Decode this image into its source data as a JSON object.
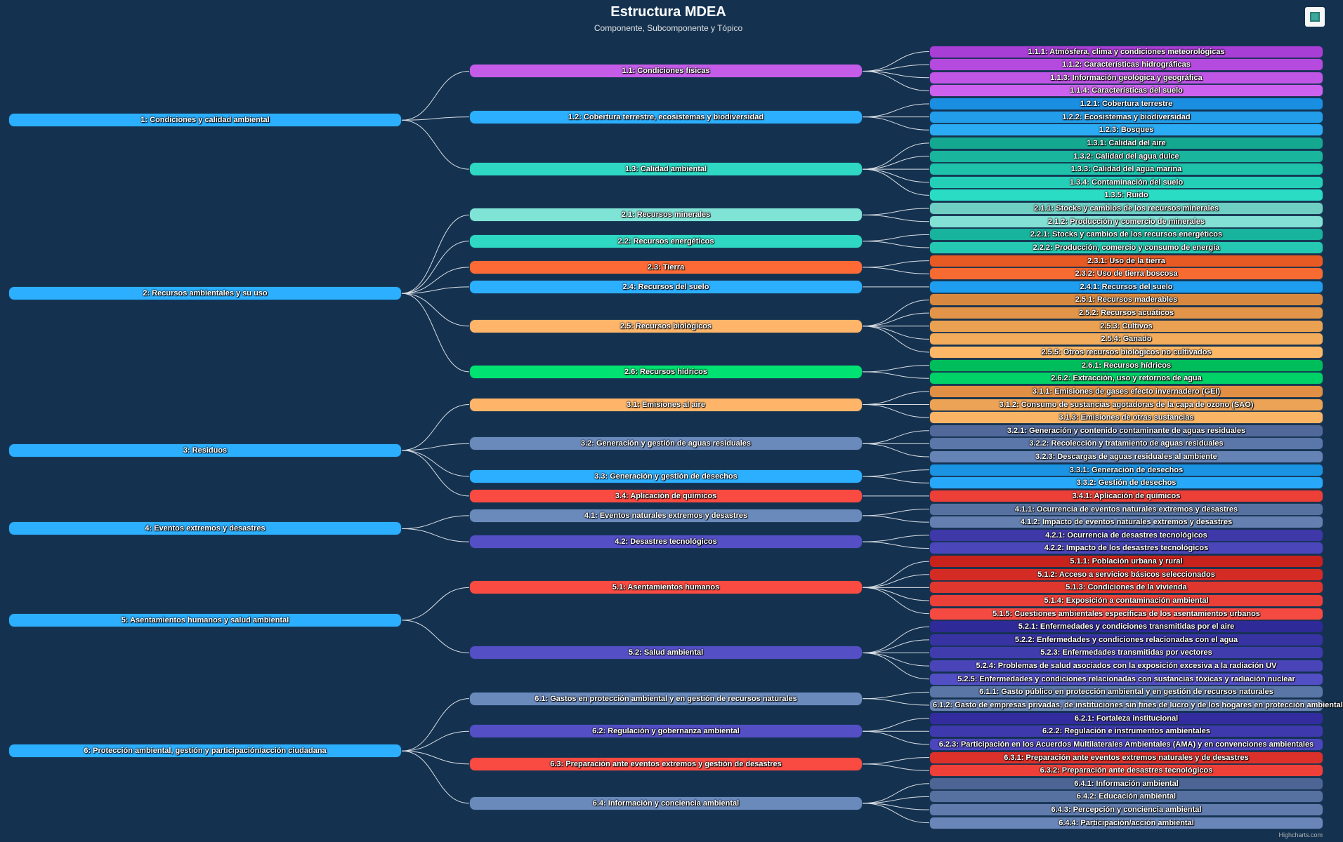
{
  "header": {
    "title": "Estructura MDEA",
    "subtitle": "Componente, Subcomponente y Tópico"
  },
  "credits": "Highcharts.com",
  "menu_icon": "context-menu-icon",
  "colors": {
    "background": "#143250",
    "link": "#d9dde3",
    "component": "#2caffe"
  },
  "tree": [
    {
      "label": "1: Condiciones y calidad ambiental",
      "children": [
        {
          "label": "1.1: Condiciones físicas",
          "color": "#c55ce8",
          "children": [
            {
              "label": "1.1.1: Atmósfera, clima y condiciones meteorológicas",
              "color": "#a93ed6"
            },
            {
              "label": "1.1.2: Características hidrográficas",
              "color": "#b54ade"
            },
            {
              "label": "1.1.3: Información geológica y geográfica",
              "color": "#c155e6"
            },
            {
              "label": "1.1.4: Características del suelo",
              "color": "#cd62ee"
            }
          ]
        },
        {
          "label": "1.2: Cobertura terrestre, ecosistemas y biodiversidad",
          "color": "#2caffe",
          "children": [
            {
              "label": "1.2.1: Cobertura terrestre",
              "color": "#1a8ee0"
            },
            {
              "label": "1.2.2: Ecosistemas y biodiversidad",
              "color": "#229de9"
            },
            {
              "label": "1.2.3: Bosques",
              "color": "#2aabf3"
            }
          ]
        },
        {
          "label": "1.3: Calidad ambiental",
          "color": "#2ed8c3",
          "children": [
            {
              "label": "1.3.1: Calidad del aire",
              "color": "#14a890"
            },
            {
              "label": "1.3.2: Calidad del agua dulce",
              "color": "#19b59d"
            },
            {
              "label": "1.3.3: Calidad del agua marina",
              "color": "#1ec2aa"
            },
            {
              "label": "1.3.4: Contaminación del suelo",
              "color": "#24cfb7"
            },
            {
              "label": "1.3.5: Ruido",
              "color": "#2adcc4"
            }
          ]
        }
      ]
    },
    {
      "label": "2: Recursos ambientales y su uso",
      "children": [
        {
          "label": "2.1: Recursos minerales",
          "color": "#7fe3d6",
          "children": [
            {
              "label": "2.1.1: Stocks y cambios de los recursos minerales",
              "color": "#6fcfc2"
            },
            {
              "label": "2.1.2: Producción y comercio de minerales",
              "color": "#82e0d4"
            }
          ]
        },
        {
          "label": "2.2: Recursos energéticos",
          "color": "#2ed8c3",
          "children": [
            {
              "label": "2.2.1: Stocks y cambios de los recursos energéticos",
              "color": "#17b39d"
            },
            {
              "label": "2.2.2: Producción, comercio y consumo de energía",
              "color": "#25c8b1"
            }
          ]
        },
        {
          "label": "2.3: Tierra",
          "color": "#fe6a35",
          "children": [
            {
              "label": "2.3.1: Uso de la tierra",
              "color": "#e85a24"
            },
            {
              "label": "2.3.2: Uso de tierra boscosa",
              "color": "#f76a32"
            }
          ]
        },
        {
          "label": "2.4: Recursos del suelo",
          "color": "#2caffe",
          "children": [
            {
              "label": "2.4.1: Recursos del suelo",
              "color": "#1f9ef0"
            }
          ]
        },
        {
          "label": "2.5: Recursos biológicos",
          "color": "#feb56a",
          "children": [
            {
              "label": "2.5.1: Recursos maderables",
              "color": "#d9893f"
            },
            {
              "label": "2.5.2: Recursos acuáticos",
              "color": "#e29548"
            },
            {
              "label": "2.5.3: Cultivos",
              "color": "#eba152"
            },
            {
              "label": "2.5.4: Ganado",
              "color": "#f3ac5c"
            },
            {
              "label": "2.5.5: Otros recursos biológicos no cultivados",
              "color": "#fcb866"
            }
          ]
        },
        {
          "label": "2.6: Recursos hídricos",
          "color": "#00e272",
          "children": [
            {
              "label": "2.6.1: Recursos hídricos",
              "color": "#00bd5b"
            },
            {
              "label": "2.6.2: Extracción, uso y retornos de agua",
              "color": "#00d268"
            }
          ]
        }
      ]
    },
    {
      "label": "3: Residuos",
      "children": [
        {
          "label": "3.1: Emisiones al aire",
          "color": "#feb56a",
          "children": [
            {
              "label": "3.1.1: Emisiones de gases efecto invernadero (GEI)",
              "color": "#e18f45"
            },
            {
              "label": "3.1.2: Consumo de sustancias agotadoras de la capa de ozono (SAO)",
              "color": "#eda356"
            },
            {
              "label": "3.1.3: Emisiones de otras sustancias",
              "color": "#f9b466"
            }
          ]
        },
        {
          "label": "3.2: Generación y gestión de aguas residuales",
          "color": "#6b8abc",
          "children": [
            {
              "label": "3.2.1: Generación y contenido contaminante de aguas residuales",
              "color": "#50699a"
            },
            {
              "label": "3.2.2: Recolección y tratamiento de aguas residuales",
              "color": "#5b76a8"
            },
            {
              "label": "3.2.3: Descargas de aguas residuales al ambiente",
              "color": "#6683b6"
            }
          ]
        },
        {
          "label": "3.3: Generación y gestión de desechos",
          "color": "#2caffe",
          "children": [
            {
              "label": "3.3.1: Generación de desechos",
              "color": "#1a93e2"
            },
            {
              "label": "3.3.2: Gestión de desechos",
              "color": "#28a8f8"
            }
          ]
        },
        {
          "label": "3.4: Aplicación de químicos",
          "color": "#fa4b42",
          "children": [
            {
              "label": "3.4.1: Aplicación de químicos",
              "color": "#ec3f37"
            }
          ]
        }
      ]
    },
    {
      "label": "4: Eventos extremos y desastres",
      "children": [
        {
          "label": "4.1: Eventos naturales extremos y desastres",
          "color": "#6b8abc",
          "children": [
            {
              "label": "4.1.1: Ocurrencia de eventos naturales extremos y desastres",
              "color": "#56719f"
            },
            {
              "label": "4.1.2: Impacto de eventos naturales extremos y desastres",
              "color": "#647fb0"
            }
          ]
        },
        {
          "label": "4.2: Desastres tecnológicos",
          "color": "#544fc5",
          "children": [
            {
              "label": "4.2.1: Ocurrencia de desastres tecnológicos",
              "color": "#3e38a8"
            },
            {
              "label": "4.2.2: Impacto de los desastres tecnológicos",
              "color": "#4c46bb"
            }
          ]
        }
      ]
    },
    {
      "label": "5: Asentamientos humanos y salud ambiental",
      "children": [
        {
          "label": "5.1: Asentamientos humanos",
          "color": "#fa4b42",
          "children": [
            {
              "label": "5.1.1: Población urbana y rural",
              "color": "#c8221c"
            },
            {
              "label": "5.1.2: Acceso a servicios básicos seleccionados",
              "color": "#d42c25"
            },
            {
              "label": "5.1.3: Condiciones de la vivienda",
              "color": "#df362e"
            },
            {
              "label": "5.1.4: Exposición a contaminación ambiental",
              "color": "#ea4038"
            },
            {
              "label": "5.1.5: Cuestiones ambientales específicas de los asentamientos urbanos",
              "color": "#f44a42"
            }
          ]
        },
        {
          "label": "5.2: Salud ambiental",
          "color": "#544fc5",
          "children": [
            {
              "label": "5.2.1: Enfermedades y condiciones transmitidas por el aire",
              "color": "#2e2a98"
            },
            {
              "label": "5.2.2: Enfermedades y condiciones relacionadas con el agua",
              "color": "#3733a3"
            },
            {
              "label": "5.2.3: Enfermedades transmitidas por vectores",
              "color": "#403cae"
            },
            {
              "label": "5.2.4: Problemas de salud asociados con la exposición excesiva a la radiación UV",
              "color": "#4945b9"
            },
            {
              "label": "5.2.5: Enfermedades y condiciones relacionadas con sustancias tóxicas y radiación nuclear",
              "color": "#524ec4"
            }
          ]
        }
      ]
    },
    {
      "label": "6: Protección ambiental, gestión y participación/acción ciudadana",
      "children": [
        {
          "label": "6.1: Gastos en protección ambiental y en gestión de recursos naturales",
          "color": "#6b8abc",
          "children": [
            {
              "label": "6.1.1: Gasto público en protección ambiental y en gestión de recursos naturales",
              "color": "#5a76a6"
            },
            {
              "label": "6.1.2: Gasto de empresas privadas, de instituciones sin fines de lucro y de los hogares en protección ambiental",
              "color": "#6883b4"
            }
          ]
        },
        {
          "label": "6.2: Regulación y gobernanza ambiental",
          "color": "#544fc5",
          "children": [
            {
              "label": "6.2.1: Fortaleza institucional",
              "color": "#322c9e"
            },
            {
              "label": "6.2.2: Regulación e instrumentos ambientales",
              "color": "#3f39ae"
            },
            {
              "label": "6.2.3: Participación en los Acuerdos Multilaterales Ambientales (AMA) y en convenciones ambientales",
              "color": "#4c46bd"
            }
          ]
        },
        {
          "label": "6.3: Preparación ante eventos extremos y gestión de desastres",
          "color": "#fa4b42",
          "children": [
            {
              "label": "6.3.1: Preparación ante eventos extremos naturales y de desastres",
              "color": "#dc302a"
            },
            {
              "label": "6.3.2: Preparación ante desastres tecnológicos",
              "color": "#ee4039"
            }
          ]
        },
        {
          "label": "6.4: Información y conciencia ambiental",
          "color": "#6b8abc",
          "children": [
            {
              "label": "6.4.1: Información ambiental",
              "color": "#4c6594"
            },
            {
              "label": "6.4.2: Educación ambiental",
              "color": "#5670a0"
            },
            {
              "label": "6.4.3: Percepción y conciencia ambiental",
              "color": "#607bac"
            },
            {
              "label": "6.4.4: Participación/acción ambiental",
              "color": "#6a86b8"
            }
          ]
        }
      ]
    }
  ]
}
